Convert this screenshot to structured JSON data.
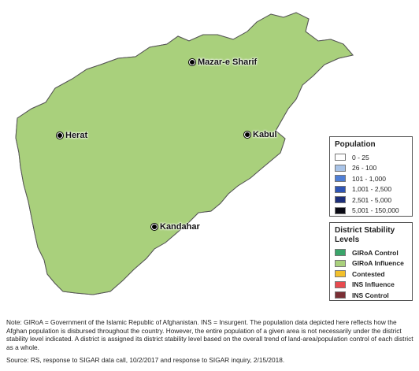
{
  "cities": [
    {
      "name": "Mazar-e Sharif",
      "key": "mazar"
    },
    {
      "name": "Herat",
      "key": "herat"
    },
    {
      "name": "Kabul",
      "key": "kabul"
    },
    {
      "name": "Kandahar",
      "key": "kandahar"
    }
  ],
  "population_legend": {
    "title": "Population",
    "items": [
      {
        "label": "0 - 25",
        "color": "#ffffff"
      },
      {
        "label": "26 - 100",
        "color": "#a9c4e8"
      },
      {
        "label": "101 - 1,000",
        "color": "#4f7fd6"
      },
      {
        "label": "1,001 - 2,500",
        "color": "#2f55b5"
      },
      {
        "label": "2,501 - 5,000",
        "color": "#1d2f7a"
      },
      {
        "label": "5,001 - 150,000",
        "color": "#0a0a14"
      }
    ]
  },
  "stability_legend": {
    "title": "District Stability Levels",
    "items": [
      {
        "label": "GIRoA Control",
        "color": "#3aa56a"
      },
      {
        "label": "GIRoA Influence",
        "color": "#a9d07c"
      },
      {
        "label": "Contested",
        "color": "#f2c02b"
      },
      {
        "label": "INS Influence",
        "color": "#e84a4f"
      },
      {
        "label": "INS Control",
        "color": "#7a2f35"
      }
    ]
  },
  "note": "Note: GIRoA = Government of the Islamic Republic of Afghanistan. INS = Insurgent. The population data depicted here reflects how the Afghan population is disbursed throughout the country. However, the entire population of a given area is not necessarily under the district stability level indicated. A district is assigned its district stability level based on the overall trend of land-area/population control of each district as a whole.",
  "source": "Source: RS, response to SIGAR data call, 10/2/2017 and response to SIGAR inquiry, 2/15/2018."
}
